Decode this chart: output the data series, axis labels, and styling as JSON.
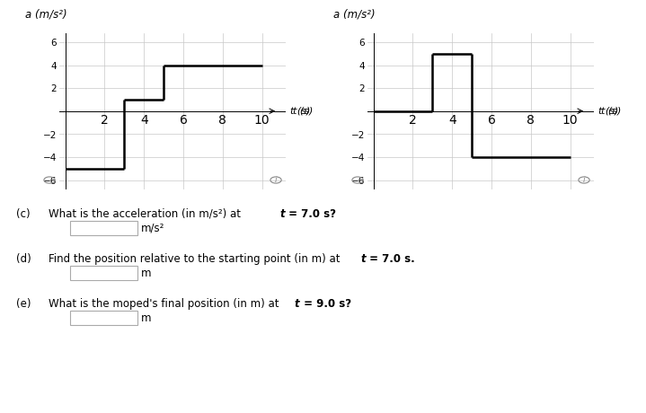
{
  "fig_width": 7.0,
  "fig_height": 4.35,
  "bg_color": "#ffffff",
  "left_graph": {
    "title": "a (m/s²)",
    "xlabel": "t (s)",
    "ylim": [
      -6.8,
      6.8
    ],
    "xlim": [
      -0.3,
      11.2
    ],
    "yticks": [
      -6,
      -4,
      -2,
      2,
      4,
      6
    ],
    "xticks": [
      2,
      4,
      6,
      8,
      10
    ],
    "segments": [
      {
        "x": [
          0,
          3
        ],
        "y": [
          -5,
          -5
        ]
      },
      {
        "x": [
          3,
          3
        ],
        "y": [
          -5,
          1
        ]
      },
      {
        "x": [
          3,
          5
        ],
        "y": [
          1,
          1
        ]
      },
      {
        "x": [
          5,
          5
        ],
        "y": [
          1,
          4
        ]
      },
      {
        "x": [
          5,
          10
        ],
        "y": [
          4,
          4
        ]
      }
    ]
  },
  "right_graph": {
    "title": "a (m/s²)",
    "xlabel": "t (s)",
    "ylim": [
      -6.8,
      6.8
    ],
    "xlim": [
      -0.3,
      11.2
    ],
    "yticks": [
      -6,
      -4,
      -2,
      2,
      4,
      6
    ],
    "xticks": [
      2,
      4,
      6,
      8,
      10
    ],
    "segments": [
      {
        "x": [
          0,
          3
        ],
        "y": [
          0,
          0
        ]
      },
      {
        "x": [
          3,
          3
        ],
        "y": [
          0,
          5
        ]
      },
      {
        "x": [
          3,
          5
        ],
        "y": [
          5,
          5
        ]
      },
      {
        "x": [
          5,
          5
        ],
        "y": [
          5,
          -4
        ]
      },
      {
        "x": [
          5,
          10
        ],
        "y": [
          -4,
          -4
        ]
      }
    ]
  },
  "line_color": "#000000",
  "grid_color": "#c8c8c8",
  "axis_color": "#000000",
  "text_color": "#000000",
  "font_size_title": 8.5,
  "font_size_tick": 7.5,
  "font_size_label": 8,
  "font_size_text": 8.5
}
